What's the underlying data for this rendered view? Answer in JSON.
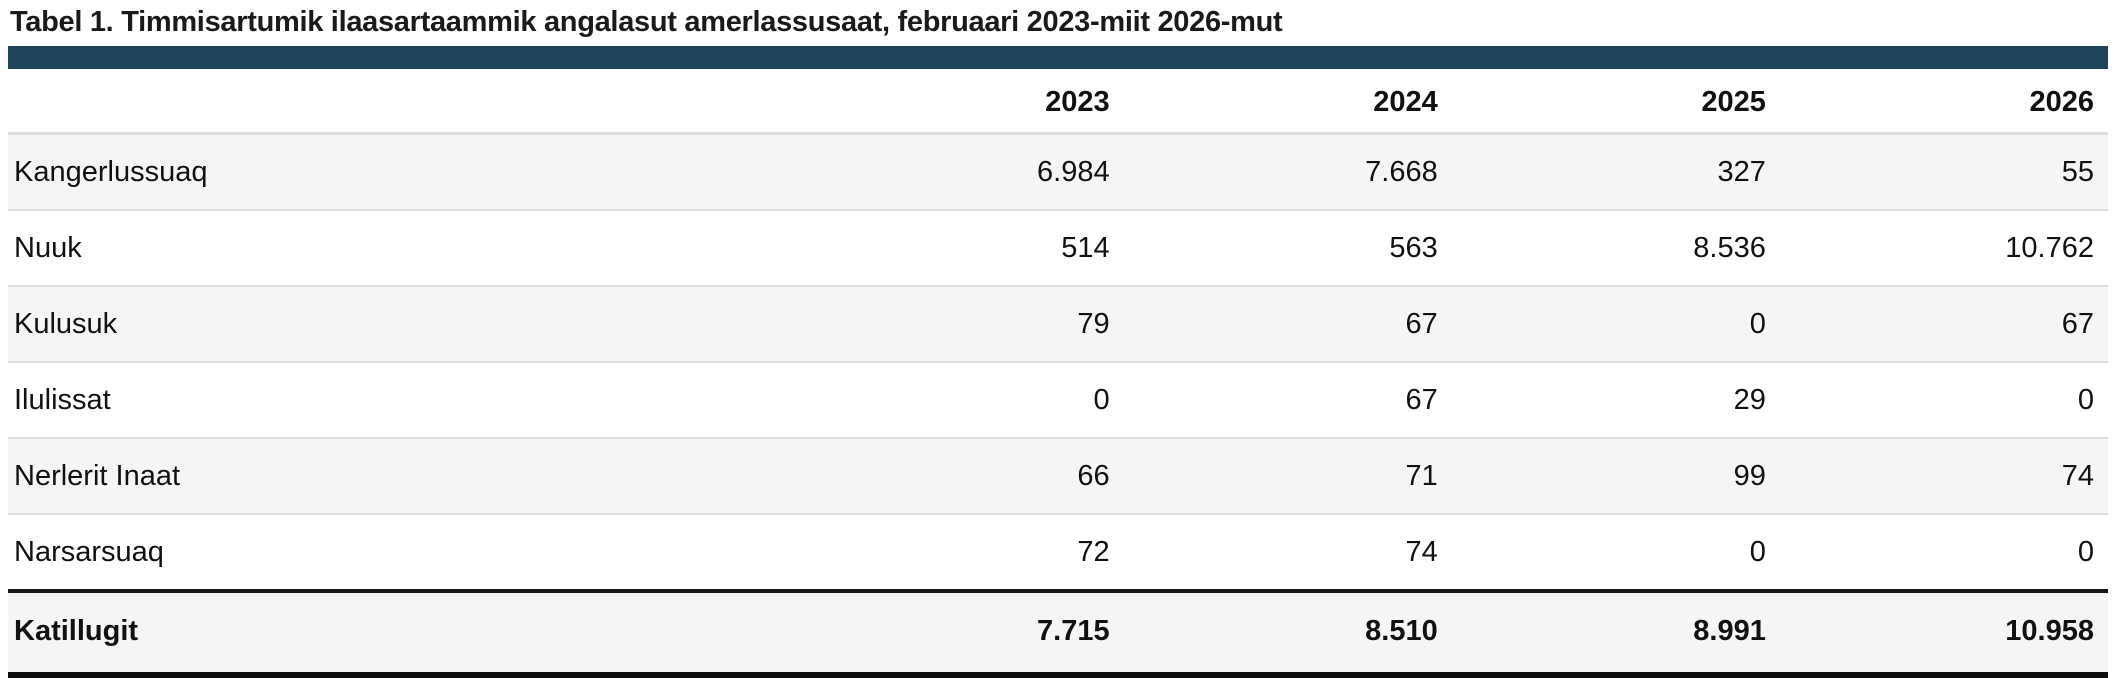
{
  "page": {
    "title": "Tabel 1. Timmisartumik ilaasartaammik angalasut amerlassusaat, februaari 2023-miit 2026-mut"
  },
  "colors": {
    "accent_bar": "#1f4459",
    "bottom_bar": "#0c0d0e",
    "stripe": "#f5f5f6",
    "row_border": "#dcdcdc",
    "total_border": "#161616",
    "text": "#111111"
  },
  "table": {
    "columns": [
      "",
      "2023",
      "2024",
      "2025",
      "2026"
    ],
    "rows": [
      {
        "label": "Kangerlussuaq",
        "values": [
          "6.984",
          "7.668",
          "327",
          "55"
        ]
      },
      {
        "label": "Nuuk",
        "values": [
          "514",
          "563",
          "8.536",
          "10.762"
        ]
      },
      {
        "label": "Kulusuk",
        "values": [
          "79",
          "67",
          "0",
          "67"
        ]
      },
      {
        "label": "Ilulissat",
        "values": [
          "0",
          "67",
          "29",
          "0"
        ]
      },
      {
        "label": "Nerlerit Inaat",
        "values": [
          "66",
          "71",
          "99",
          "74"
        ]
      },
      {
        "label": "Narsarsuaq",
        "values": [
          "72",
          "74",
          "0",
          "0"
        ]
      }
    ],
    "total_row": {
      "label": "Katillugit",
      "values": [
        "7.715",
        "8.510",
        "8.991",
        "10.958"
      ]
    }
  },
  "chart_data": {
    "type": "table",
    "title": "Tabel 1. Timmisartumik ilaasartaammik angalasut amerlassusaat, februaari 2023-miit 2026-mut",
    "categories": [
      "2023",
      "2024",
      "2025",
      "2026"
    ],
    "series": [
      {
        "name": "Kangerlussuaq",
        "values": [
          6984,
          7668,
          327,
          55
        ]
      },
      {
        "name": "Nuuk",
        "values": [
          514,
          563,
          8536,
          10762
        ]
      },
      {
        "name": "Kulusuk",
        "values": [
          79,
          67,
          0,
          67
        ]
      },
      {
        "name": "Ilulissat",
        "values": [
          0,
          67,
          29,
          0
        ]
      },
      {
        "name": "Nerlerit Inaat",
        "values": [
          66,
          71,
          99,
          74
        ]
      },
      {
        "name": "Narsarsuaq",
        "values": [
          72,
          74,
          0,
          0
        ]
      },
      {
        "name": "Katillugit",
        "values": [
          7715,
          8510,
          8991,
          10958
        ]
      }
    ]
  }
}
